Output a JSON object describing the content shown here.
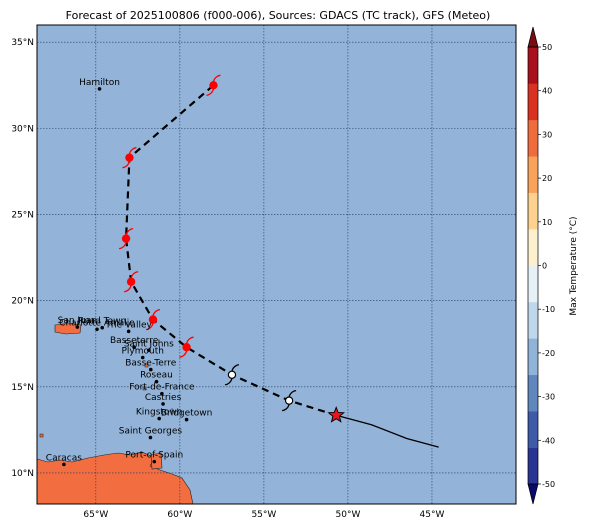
{
  "title": "Forecast of 2025100806 (f000-006), Sources: GDACS (TC track), GFS (Meteo)",
  "map": {
    "lon_range": [
      -68.5,
      -40
    ],
    "lat_range": [
      8.2,
      36
    ],
    "lon_ticks": [
      {
        "value": -65,
        "label": "65°W"
      },
      {
        "value": -60,
        "label": "60°W"
      },
      {
        "value": -55,
        "label": "55°W"
      },
      {
        "value": -50,
        "label": "50°W"
      },
      {
        "value": -45,
        "label": "45°W"
      }
    ],
    "lat_ticks": [
      {
        "value": 35,
        "label": "35°N"
      },
      {
        "value": 30,
        "label": "30°N"
      },
      {
        "value": 25,
        "label": "25°N"
      },
      {
        "value": 20,
        "label": "20°N"
      },
      {
        "value": 15,
        "label": "15°N"
      },
      {
        "value": 10,
        "label": "10°N"
      }
    ],
    "ocean_color": "#93b4d8",
    "land_color": "#f26d40",
    "cities": [
      {
        "name": "Hamilton",
        "lon": -64.78,
        "lat": 32.29
      },
      {
        "name": "San Juan",
        "lon": -66.1,
        "lat": 18.47
      },
      {
        "name": "Road Town",
        "lon": -64.62,
        "lat": 18.43
      },
      {
        "name": "Charlotte Amalie",
        "lon": -64.93,
        "lat": 18.34
      },
      {
        "name": "The Valley",
        "lon": -63.05,
        "lat": 18.22
      },
      {
        "name": "Basseterre",
        "lon": -62.72,
        "lat": 17.3
      },
      {
        "name": "Saint Johns",
        "lon": -61.85,
        "lat": 17.12
      },
      {
        "name": "Plymouth",
        "lon": -62.21,
        "lat": 16.7
      },
      {
        "name": "Basse-Terre",
        "lon": -61.73,
        "lat": 16.0
      },
      {
        "name": "Roseau",
        "lon": -61.39,
        "lat": 15.3
      },
      {
        "name": "Fort-de-France",
        "lon": -61.07,
        "lat": 14.6
      },
      {
        "name": "Castries",
        "lon": -61.0,
        "lat": 14.01
      },
      {
        "name": "Kingstown",
        "lon": -61.23,
        "lat": 13.16
      },
      {
        "name": "Bridgetown",
        "lon": -59.6,
        "lat": 13.1
      },
      {
        "name": "Saint Georges",
        "lon": -61.75,
        "lat": 12.06
      },
      {
        "name": "Port-of-Spain",
        "lon": -61.52,
        "lat": 10.66
      },
      {
        "name": "Caracas",
        "lon": -66.9,
        "lat": 10.5
      }
    ]
  },
  "track": {
    "past": [
      {
        "lon": -44.6,
        "lat": 11.5
      },
      {
        "lon": -46.5,
        "lat": 12.0
      },
      {
        "lon": -48.6,
        "lat": 12.8
      },
      {
        "lon": -50.7,
        "lat": 13.35
      }
    ],
    "current": {
      "lon": -50.7,
      "lat": 13.35
    },
    "forecast": [
      {
        "lon": -50.7,
        "lat": 13.35,
        "category": "low"
      },
      {
        "lon": -53.5,
        "lat": 14.2,
        "category": "low"
      },
      {
        "lon": -56.9,
        "lat": 15.7,
        "category": "low"
      },
      {
        "lon": -59.6,
        "lat": 17.3,
        "category": "storm"
      },
      {
        "lon": -61.6,
        "lat": 18.9,
        "category": "storm"
      },
      {
        "lon": -62.9,
        "lat": 21.1,
        "category": "storm"
      },
      {
        "lon": -63.2,
        "lat": 23.6,
        "category": "storm"
      },
      {
        "lon": -63.0,
        "lat": 28.3,
        "category": "storm"
      },
      {
        "lon": -58.0,
        "lat": 32.5,
        "category": "storm"
      }
    ]
  },
  "colorbar": {
    "label": "Max Temperature (°C)",
    "ticks": [
      "-50",
      "-40",
      "-30",
      "-20",
      "-10",
      "0",
      "10",
      "20",
      "30",
      "40",
      "50"
    ],
    "colors": [
      "#283593",
      "#3f5aa8",
      "#5f86bd",
      "#8fb4d8",
      "#bed7ea",
      "#e6f1f7",
      "#fdf0cf",
      "#fdd28f",
      "#f9a35a",
      "#ef6c3d",
      "#d93221",
      "#a8101e"
    ],
    "extend_low": "#0a0a6e",
    "extend_high": "#7a0a14"
  }
}
